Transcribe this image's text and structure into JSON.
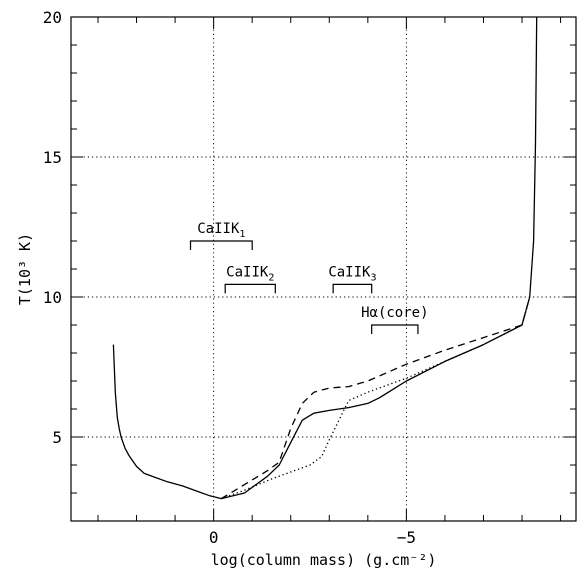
{
  "chart_data": {
    "type": "line",
    "xlabel": "log(column mass) (g.cm⁻²)",
    "ylabel": "T(10³ K)",
    "xlim": [
      3.7,
      -9.4
    ],
    "ylim": [
      2.0,
      20.0
    ],
    "reversed_x": true,
    "grid": "dotted",
    "x_ticks": [
      0,
      -5
    ],
    "x_tick_labels": [
      "0",
      "−5"
    ],
    "y_ticks": [
      5,
      10,
      15,
      20
    ],
    "y_tick_labels": [
      "5",
      "10",
      "15",
      "20"
    ],
    "series": [
      {
        "style": "solid",
        "x": [
          2.6,
          2.55,
          2.5,
          2.45,
          2.4,
          2.3,
          2.2,
          2.0,
          1.8,
          1.5,
          1.2,
          0.8,
          0.4,
          0.1,
          -0.2,
          -0.8,
          -1.4,
          -1.7,
          -2.0,
          -2.3,
          -2.6,
          -3.0,
          -3.5,
          -4.0,
          -4.3,
          -5.0,
          -6.0,
          -7.0,
          -8.0,
          -8.2,
          -8.3,
          -8.35,
          -8.38
        ],
        "y": [
          8.3,
          6.6,
          5.7,
          5.3,
          5.0,
          4.6,
          4.35,
          3.95,
          3.7,
          3.55,
          3.4,
          3.25,
          3.05,
          2.9,
          2.8,
          3.0,
          3.6,
          4.0,
          4.8,
          5.6,
          5.85,
          5.95,
          6.05,
          6.2,
          6.4,
          7.0,
          7.7,
          8.3,
          9.0,
          10.0,
          12.0,
          15.5,
          20.0
        ]
      },
      {
        "style": "dashed",
        "x": [
          -0.2,
          -0.8,
          -1.4,
          -1.7,
          -2.0,
          -2.3,
          -2.6,
          -3.0,
          -3.5,
          -4.0,
          -5.0,
          -6.0,
          -7.0,
          -8.0,
          -8.2
        ],
        "y": [
          2.8,
          3.3,
          3.8,
          4.1,
          5.3,
          6.2,
          6.6,
          6.75,
          6.8,
          7.0,
          7.6,
          8.1,
          8.55,
          9.0,
          10.0
        ]
      },
      {
        "style": "dotted",
        "x": [
          -0.2,
          -0.8,
          -1.5,
          -2.0,
          -2.5,
          -2.8,
          -3.0,
          -3.5,
          -4.0,
          -5.0,
          -6.0,
          -7.0,
          -8.0,
          -8.2
        ],
        "y": [
          2.8,
          3.1,
          3.5,
          3.75,
          4.0,
          4.3,
          4.9,
          6.3,
          6.6,
          7.1,
          7.7,
          8.3,
          9.0,
          10.0
        ]
      }
    ],
    "annotations": [
      {
        "label": "CaIIK",
        "subscript": "1",
        "x_range": [
          0.6,
          -1.0
        ],
        "y": 12.0
      },
      {
        "label": "CaIIK",
        "subscript": "2",
        "x_range": [
          -0.3,
          -1.6
        ],
        "y": 10.45
      },
      {
        "label": "CaIIK",
        "subscript": "3",
        "x_range": [
          -3.1,
          -4.1
        ],
        "y": 10.45
      },
      {
        "label": "Hα(core)",
        "subscript": "",
        "x_range": [
          -4.1,
          -5.3
        ],
        "y": 9.0
      }
    ]
  }
}
